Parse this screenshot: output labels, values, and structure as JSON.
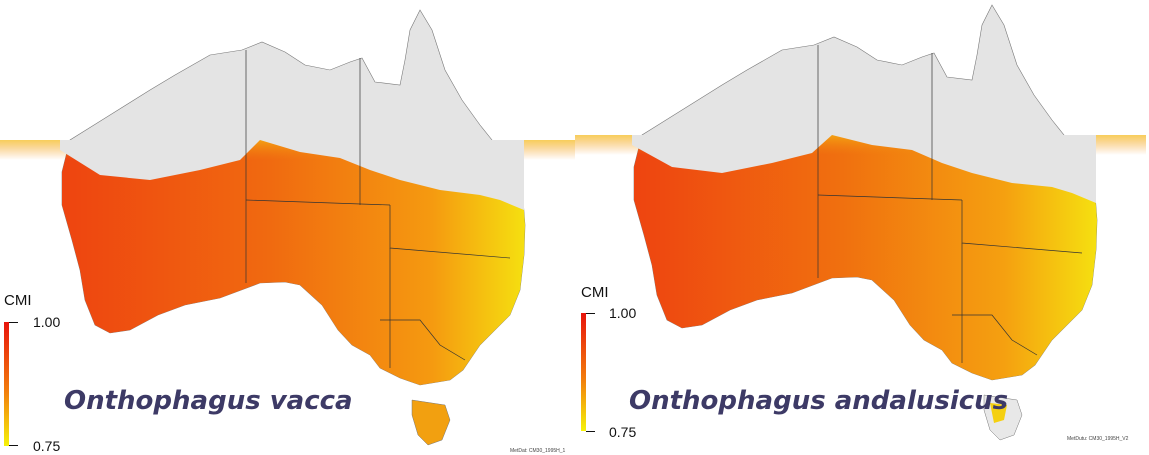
{
  "maps": [
    {
      "species": "Onthophagus vacca",
      "legend": {
        "title": "CMI",
        "max_label": "1.00",
        "min_label": "0.75"
      },
      "credit": "MetDat: CM30_1995H_1"
    },
    {
      "species": "Onthophagus andalusicus",
      "legend": {
        "title": "CMI",
        "max_label": "1.00",
        "min_label": "0.75"
      },
      "credit": "MetDutu: CM30_1995H_V2"
    }
  ],
  "colors": {
    "land_unsuitable": "#e4e4e4",
    "scale_high": "#e8240c",
    "scale_mid": "#f27b0c",
    "scale_low": "#f5f20a",
    "boundary": "#333333",
    "species_label": "#3d3a66"
  }
}
